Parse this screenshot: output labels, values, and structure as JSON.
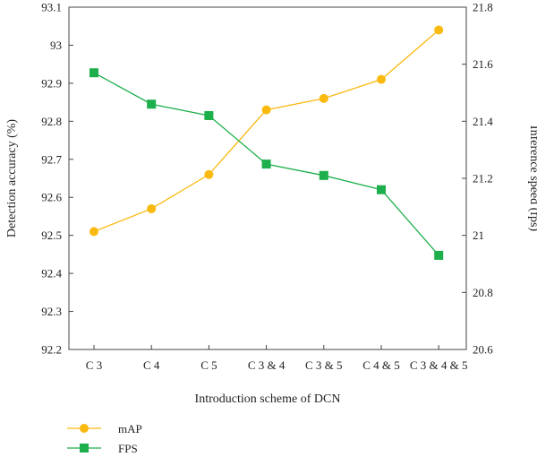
{
  "chart_data": {
    "type": "line",
    "categories": [
      "C 3",
      "C 4",
      "C 5",
      "C 3 & 4",
      "C 3 & 5",
      "C 4 & 5",
      "C 3 & 4 & 5"
    ],
    "xlabel": "Introduction scheme of DCN",
    "ylabel": "Detection accuracy (%)",
    "y2label": "Inference speed (fps)",
    "ylim": [
      92.2,
      93.1
    ],
    "y2lim": [
      20.6,
      21.8
    ],
    "yticks": [
      "92.2",
      "92.3",
      "92.4",
      "92.5",
      "92.6",
      "92.7",
      "92.8",
      "92.9",
      "93",
      "93.1"
    ],
    "y2ticks": [
      "20.6",
      "20.8",
      "21",
      "21.2",
      "21.4",
      "21.6",
      "21.8"
    ],
    "grid": false,
    "legend_placement": "bottom-left",
    "series": [
      {
        "name": "mAP",
        "axis": "left",
        "marker": "circle",
        "color": "#F9B90F",
        "values": [
          92.51,
          92.57,
          92.66,
          92.83,
          92.86,
          92.91,
          93.04
        ]
      },
      {
        "name": "FPS",
        "axis": "right",
        "marker": "square",
        "color": "#1DAF4B",
        "values": [
          21.57,
          21.46,
          21.42,
          21.25,
          21.21,
          21.16,
          20.93
        ]
      }
    ]
  }
}
